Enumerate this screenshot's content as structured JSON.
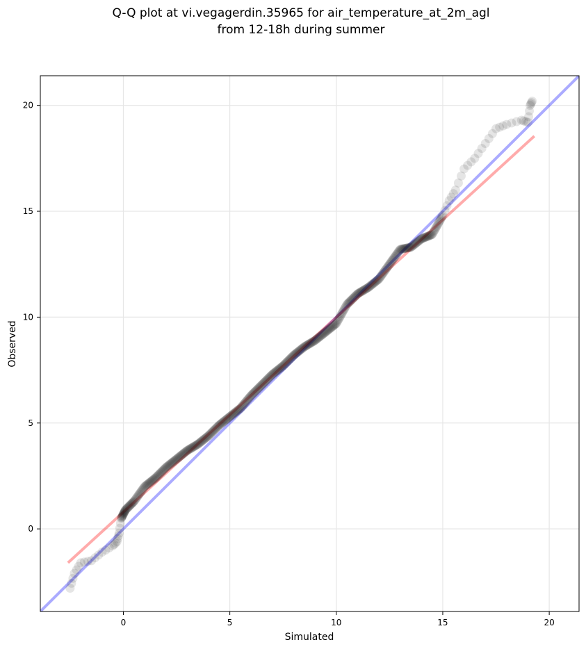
{
  "chart_data": {
    "type": "scatter",
    "title": "Q-Q plot at vi.vegagerdin.35965 for air_temperature_at_2m_agl",
    "subtitle": "from 12-18h during summer",
    "xlabel": "Simulated",
    "ylabel": "Observed",
    "xlim": [
      -3.9,
      21.4
    ],
    "ylim": [
      -3.9,
      21.4
    ],
    "xticks": [
      0,
      5,
      10,
      15,
      20
    ],
    "yticks": [
      0,
      5,
      10,
      15,
      20
    ],
    "grid": true,
    "legend": "none",
    "colors": {
      "points": "#000000",
      "fit_line": "#ff0000",
      "identity_line": "#0000ff",
      "grid": "#e6e6e6"
    },
    "quantile_keypoints": [
      [
        -2.5,
        -2.8
      ],
      [
        -2.3,
        -2.1
      ],
      [
        -2.0,
        -1.6
      ],
      [
        -1.5,
        -1.5
      ],
      [
        -1.0,
        -1.1
      ],
      [
        -0.5,
        -0.8
      ],
      [
        -0.3,
        -0.6
      ],
      [
        -0.2,
        -0.2
      ],
      [
        -0.1,
        0.5
      ],
      [
        0.1,
        0.9
      ],
      [
        0.5,
        1.3
      ],
      [
        1.0,
        2.0
      ],
      [
        1.5,
        2.4
      ],
      [
        2.0,
        2.9
      ],
      [
        2.5,
        3.3
      ],
      [
        3.0,
        3.7
      ],
      [
        3.5,
        4.0
      ],
      [
        4.0,
        4.4
      ],
      [
        4.5,
        4.9
      ],
      [
        5.0,
        5.3
      ],
      [
        5.5,
        5.7
      ],
      [
        6.0,
        6.3
      ],
      [
        6.5,
        6.8
      ],
      [
        7.0,
        7.3
      ],
      [
        7.5,
        7.7
      ],
      [
        8.0,
        8.2
      ],
      [
        8.5,
        8.6
      ],
      [
        9.0,
        8.9
      ],
      [
        9.5,
        9.3
      ],
      [
        10.0,
        9.7
      ],
      [
        10.5,
        10.6
      ],
      [
        11.0,
        11.1
      ],
      [
        11.5,
        11.4
      ],
      [
        12.0,
        11.8
      ],
      [
        12.5,
        12.5
      ],
      [
        13.0,
        13.2
      ],
      [
        13.5,
        13.3
      ],
      [
        14.0,
        13.7
      ],
      [
        14.5,
        13.9
      ],
      [
        15.0,
        14.8
      ],
      [
        15.3,
        15.5
      ],
      [
        15.6,
        16.0
      ],
      [
        16.0,
        17.0
      ],
      [
        16.5,
        17.5
      ],
      [
        17.0,
        18.2
      ],
      [
        17.5,
        18.9
      ],
      [
        18.0,
        19.1
      ],
      [
        18.7,
        19.3
      ],
      [
        19.0,
        19.2
      ],
      [
        19.1,
        20.0
      ],
      [
        19.2,
        20.2
      ]
    ],
    "fit_line": {
      "x": [
        -2.6,
        19.3
      ],
      "y": [
        -1.6,
        18.55
      ]
    },
    "identity_line": {
      "x": [
        -3.9,
        21.4
      ],
      "y": [
        -3.9,
        21.4
      ]
    }
  }
}
